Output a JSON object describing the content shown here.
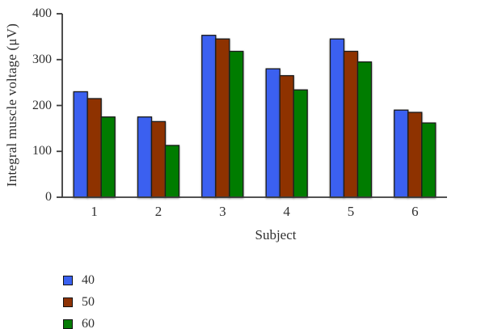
{
  "figure": {
    "background": "#ffffff",
    "text_color": "#2f2f2f",
    "axis_color": "#3a3a3a",
    "bar_outline_color": "#1a1a1a"
  },
  "chart_data": {
    "type": "bar",
    "title": "",
    "xlabel": "Subject",
    "ylabel": "Integral muscle voltage (μV)",
    "categories": [
      "1",
      "2",
      "3",
      "4",
      "5",
      "6"
    ],
    "series": [
      {
        "name": "40",
        "color": "#3A61F0",
        "values": [
          230,
          175,
          353,
          280,
          345,
          190
        ]
      },
      {
        "name": "50",
        "color": "#8E3306",
        "values": [
          215,
          165,
          345,
          265,
          318,
          185
        ]
      },
      {
        "name": "60",
        "color": "#057C05",
        "values": [
          175,
          113,
          318,
          234,
          295,
          162
        ]
      }
    ],
    "ylim": [
      0,
      400
    ],
    "yticks": [
      0,
      100,
      200,
      300,
      400
    ],
    "grid": false,
    "legend_position": "bottom-left"
  }
}
